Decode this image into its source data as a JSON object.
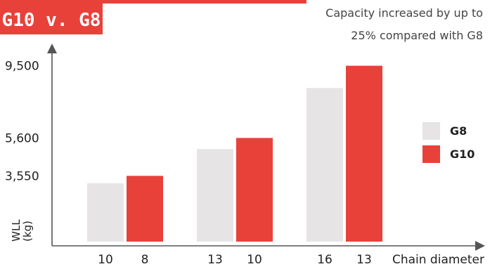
{
  "badge": {
    "title": "G10 v. G8"
  },
  "subtitle": {
    "line1": "Capacity increased by up to",
    "line2": "25% compared with G8"
  },
  "colors": {
    "accent": "#e8413a",
    "g8": "#e6e4e4",
    "axis": "#555555"
  },
  "chart_data": {
    "type": "bar",
    "xlabel": "Chain diameter",
    "ylabel_line1": "WLL",
    "ylabel_line2": "(kg)",
    "ylim": [
      0,
      10700
    ],
    "yticks": [
      {
        "value": 3550,
        "label": "3,550"
      },
      {
        "value": 5600,
        "label": "5,600"
      },
      {
        "value": 9500,
        "label": "9,500"
      }
    ],
    "legend": {
      "position": "right",
      "entries": [
        "G8",
        "G10"
      ]
    },
    "groups": [
      {
        "g8_diameter": "10",
        "g10_diameter": "8"
      },
      {
        "g8_diameter": "13",
        "g10_diameter": "10"
      },
      {
        "g8_diameter": "16",
        "g10_diameter": "13"
      }
    ],
    "series": [
      {
        "name": "G8",
        "values": [
          3150,
          5000,
          8300
        ]
      },
      {
        "name": "G10",
        "values": [
          3550,
          5600,
          9500
        ]
      }
    ]
  }
}
